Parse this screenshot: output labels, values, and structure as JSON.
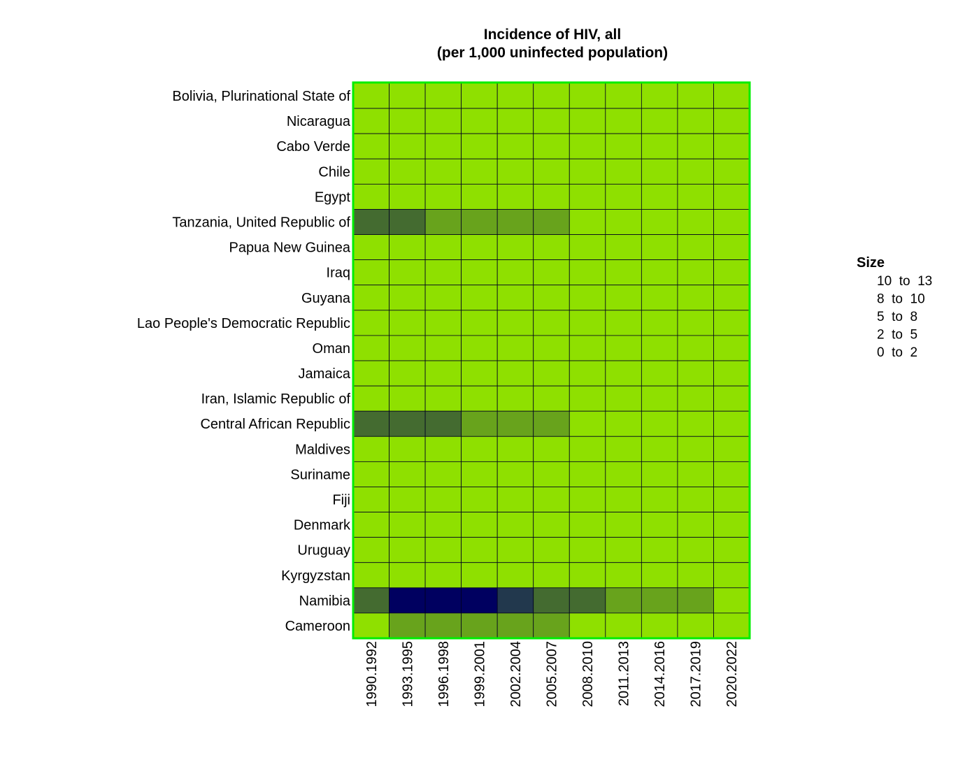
{
  "chart_data": {
    "type": "heatmap",
    "title_line1": "Incidence of HIV, all",
    "title_line2": "(per 1,000 uninfected population)",
    "columns": [
      "1990.1992",
      "1993.1995",
      "1996.1998",
      "1999.2001",
      "2002.2004",
      "2005.2007",
      "2008.2010",
      "2011.2013",
      "2014.2016",
      "2017.2019",
      "2020.2022"
    ],
    "rows": [
      "Bolivia, Plurinational State of",
      "Nicaragua",
      "Cabo Verde",
      "Chile",
      "Egypt",
      "Tanzania, United Republic of",
      "Papua New Guinea",
      "Iraq",
      "Guyana",
      "Lao People's Democratic Republic",
      "Oman",
      "Jamaica",
      "Iran, Islamic Republic of",
      "Central African Republic",
      "Maldives",
      "Suriname",
      "Fiji",
      "Denmark",
      "Uruguay",
      "Kyrgyzstan",
      "Namibia",
      "Cameroon"
    ],
    "values": [
      [
        0.5,
        0.5,
        0.4,
        0.4,
        0.4,
        0.3,
        0.3,
        0.2,
        0.2,
        0.2,
        0.2
      ],
      [
        0.3,
        0.3,
        0.3,
        0.3,
        0.2,
        0.2,
        0.2,
        0.1,
        0.1,
        0.1,
        0.1
      ],
      [
        1.0,
        1.0,
        0.9,
        0.8,
        0.6,
        0.5,
        0.4,
        0.3,
        0.3,
        0.2,
        0.2
      ],
      [
        0.2,
        0.2,
        0.2,
        0.2,
        0.2,
        0.2,
        0.2,
        0.3,
        0.3,
        0.3,
        0.3
      ],
      [
        0.0,
        0.0,
        0.0,
        0.0,
        0.0,
        0.0,
        0.0,
        0.0,
        0.0,
        0.1,
        0.1
      ],
      [
        6.0,
        6.0,
        4.5,
        4.0,
        3.5,
        3.0,
        1.8,
        1.5,
        1.2,
        1.0,
        0.8
      ],
      [
        0.8,
        1.2,
        1.5,
        1.8,
        1.8,
        1.5,
        1.2,
        1.0,
        1.0,
        1.0,
        1.0
      ],
      [
        0.0,
        0.0,
        0.0,
        0.0,
        0.0,
        0.0,
        0.0,
        0.0,
        0.0,
        0.0,
        0.0
      ],
      [
        1.5,
        1.8,
        1.8,
        1.5,
        1.2,
        1.0,
        0.9,
        0.8,
        0.8,
        0.8,
        0.8
      ],
      [
        0.0,
        0.1,
        0.1,
        0.1,
        0.1,
        0.1,
        0.1,
        0.1,
        0.1,
        0.1,
        0.1
      ],
      [
        0.0,
        0.0,
        0.0,
        0.0,
        0.0,
        0.0,
        0.0,
        0.0,
        0.0,
        0.0,
        0.0
      ],
      [
        1.0,
        1.2,
        1.2,
        1.2,
        1.0,
        0.9,
        0.8,
        0.7,
        0.6,
        0.6,
        0.5
      ],
      [
        0.0,
        0.0,
        0.1,
        0.1,
        0.1,
        0.1,
        0.1,
        0.1,
        0.1,
        0.1,
        0.0
      ],
      [
        6.0,
        5.5,
        5.5,
        4.5,
        3.5,
        3.0,
        1.8,
        1.2,
        1.0,
        0.8,
        0.8
      ],
      [
        0.0,
        0.0,
        0.0,
        0.0,
        0.0,
        0.0,
        0.0,
        0.0,
        0.0,
        0.0,
        0.0
      ],
      [
        1.0,
        1.0,
        1.0,
        0.9,
        0.8,
        0.7,
        0.6,
        0.6,
        0.6,
        0.5,
        0.5
      ],
      [
        0.0,
        0.0,
        0.0,
        0.1,
        0.1,
        0.1,
        0.1,
        0.1,
        0.2,
        0.2,
        0.3
      ],
      [
        0.1,
        0.1,
        0.1,
        0.1,
        0.1,
        0.1,
        0.1,
        0.1,
        0.1,
        0.0,
        0.0
      ],
      [
        0.2,
        0.3,
        0.3,
        0.3,
        0.3,
        0.3,
        0.3,
        0.3,
        0.3,
        0.3,
        0.3
      ],
      [
        0.0,
        0.0,
        0.0,
        0.0,
        0.1,
        0.1,
        0.2,
        0.2,
        0.2,
        0.1,
        0.1
      ],
      [
        6.5,
        12.0,
        12.0,
        11.0,
        9.0,
        6.0,
        5.5,
        4.5,
        3.5,
        2.5,
        1.8
      ],
      [
        1.8,
        3.0,
        3.5,
        3.5,
        3.0,
        2.0,
        1.5,
        1.2,
        1.0,
        0.8,
        0.6
      ]
    ],
    "legend": {
      "title": "Size",
      "entries": [
        "10  to  13",
        "8  to  10",
        "5  to  8",
        "2  to  5",
        "0  to  2"
      ]
    },
    "bins": [
      {
        "min": 10,
        "max": 13,
        "color": "#000060"
      },
      {
        "min": 8,
        "max": 10,
        "color": "#22384d"
      },
      {
        "min": 5,
        "max": 8,
        "color": "#446b30"
      },
      {
        "min": 2,
        "max": 5,
        "color": "#68a31c"
      },
      {
        "min": 0,
        "max": 2,
        "color": "#8fe000"
      }
    ],
    "frame_color": "#00ee00",
    "cell_border_color": "#000020",
    "grid": true,
    "legend_placement": "right"
  }
}
